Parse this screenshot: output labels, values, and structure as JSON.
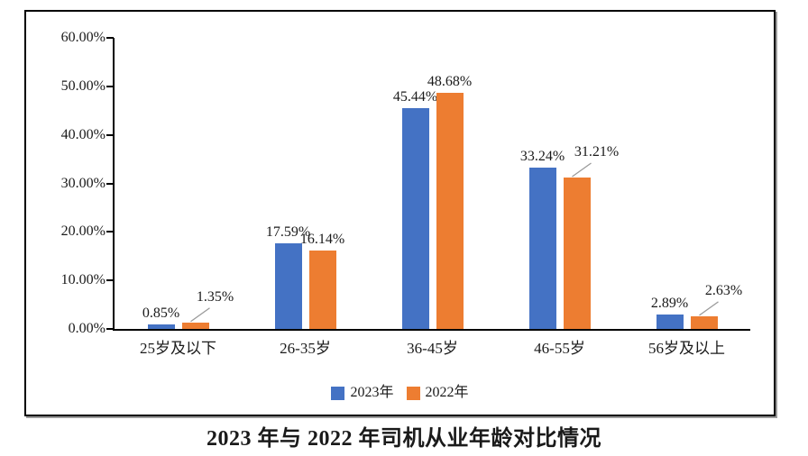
{
  "chart_data": {
    "type": "bar",
    "title": "2023 年与 2022 年司机从业年龄对比情况",
    "categories": [
      "25岁及以下",
      "26-35岁",
      "36-45岁",
      "46-55岁",
      "56岁及以上"
    ],
    "series": [
      {
        "name": "2023年",
        "color": "#4472C4",
        "values": [
          0.85,
          17.59,
          45.44,
          33.24,
          2.89
        ],
        "labels": [
          "0.85%",
          "17.59%",
          "45.44%",
          "33.24%",
          "2.89%"
        ],
        "callout_indices": []
      },
      {
        "name": "2022年",
        "color": "#ED7D31",
        "values": [
          1.35,
          16.14,
          48.68,
          31.21,
          2.63
        ],
        "labels": [
          "1.35%",
          "16.14%",
          "48.68%",
          "31.21%",
          "2.63%"
        ],
        "callout_indices": [
          0,
          3,
          4
        ]
      }
    ],
    "y_axis": {
      "min": 0,
      "max": 60,
      "step": 10,
      "tick_labels": [
        "0.00%",
        "10.00%",
        "20.00%",
        "30.00%",
        "40.00%",
        "50.00%",
        "60.00%"
      ]
    },
    "legend": {
      "position": "bottom",
      "entries": [
        "2023年",
        "2022年"
      ]
    },
    "grid": false,
    "leader_line_color": "#9a9a9a"
  }
}
